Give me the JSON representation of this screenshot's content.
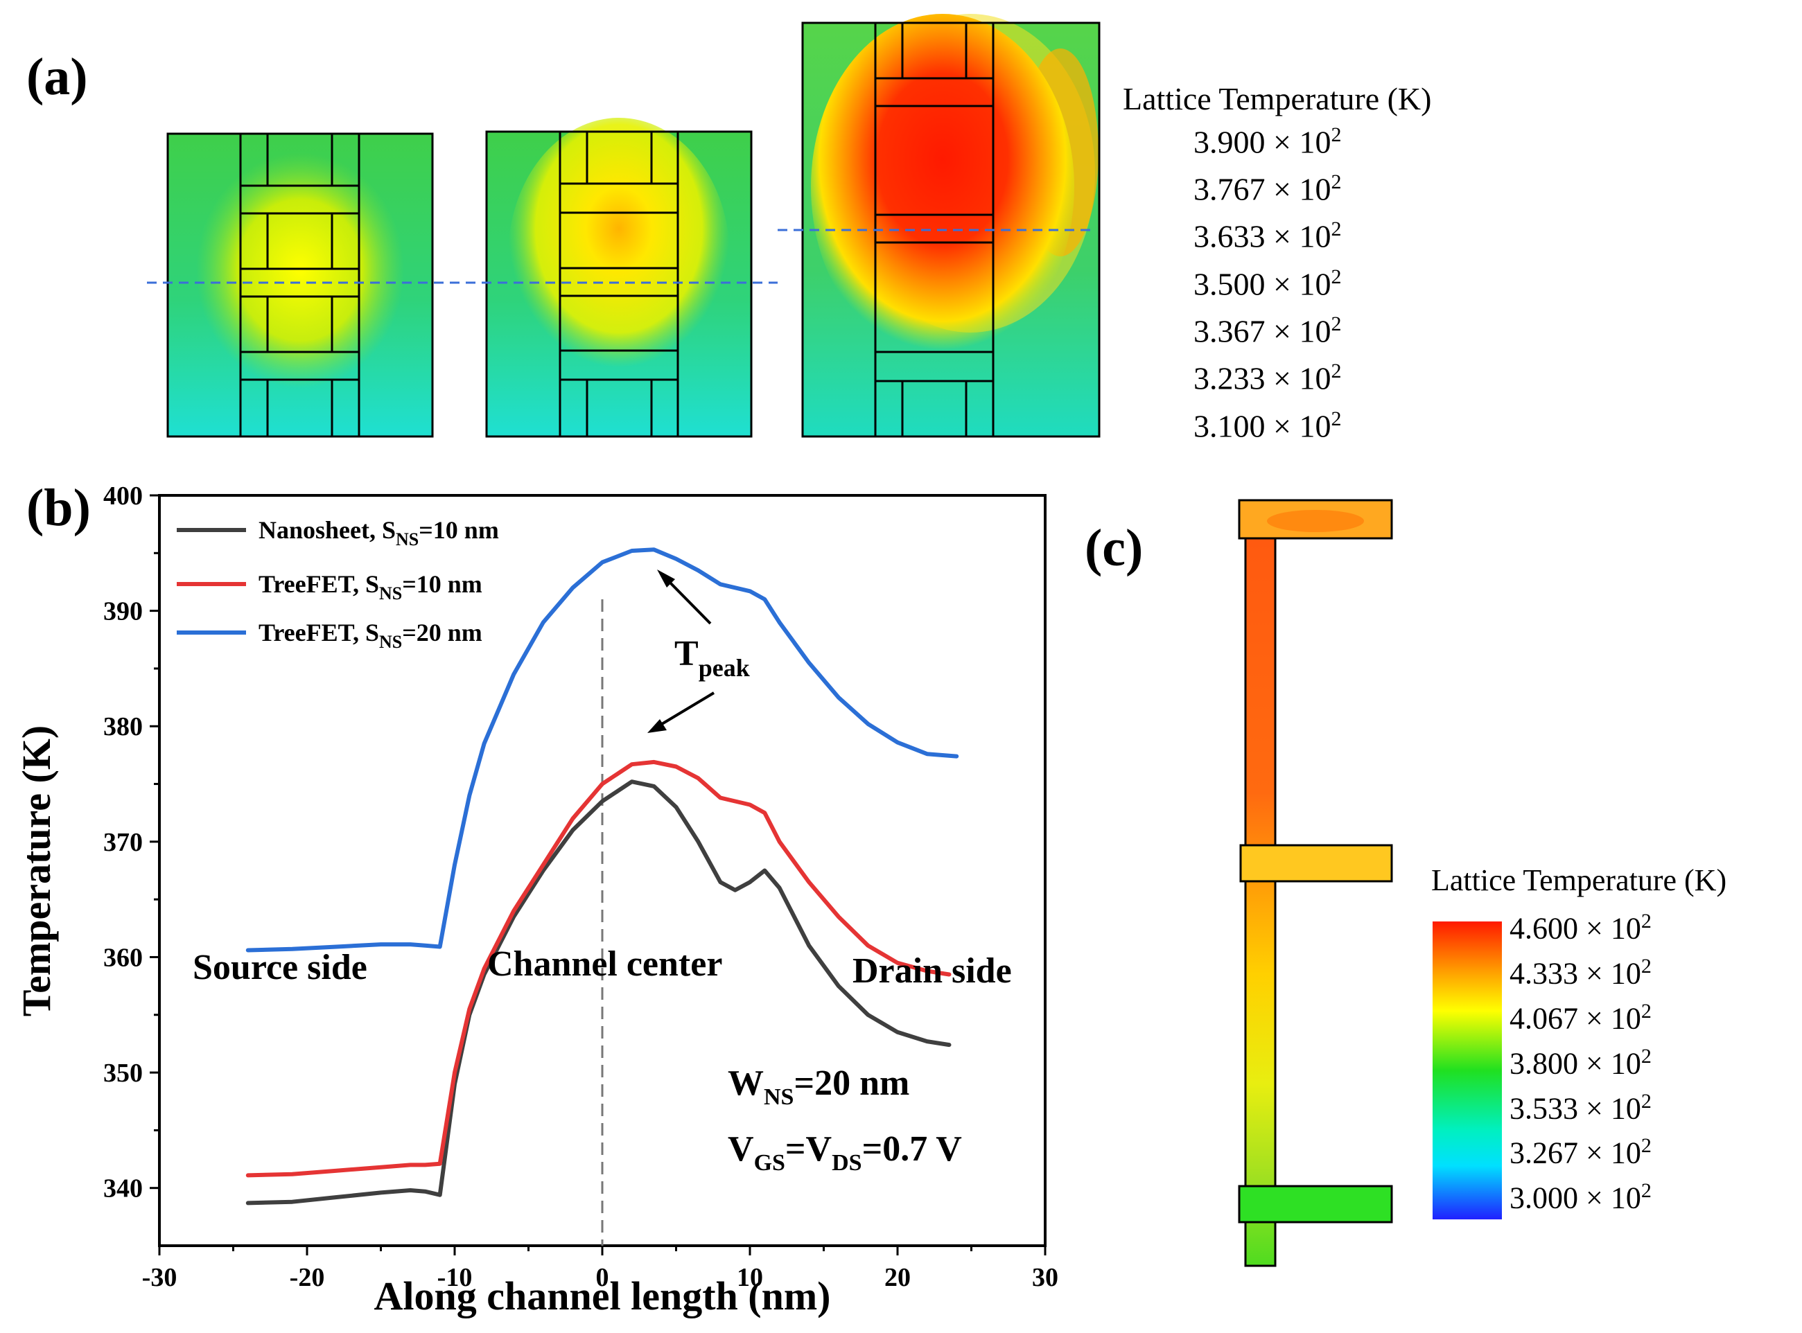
{
  "figure": {
    "panel_a_label": "(a)",
    "panel_b_label": "(b)",
    "panel_c_label": "(c)"
  },
  "colorbar_a": {
    "title": "Lattice Temperature (K)",
    "ticks": [
      "3.900",
      "3.767",
      "3.633",
      "3.500",
      "3.367",
      "3.233",
      "3.100"
    ],
    "multiplier": "× 10",
    "exponent": "2"
  },
  "colorbar_c": {
    "title": "Lattice Temperature (K)",
    "ticks": [
      "4.600",
      "4.333",
      "4.067",
      "3.800",
      "3.533",
      "3.267",
      "3.000"
    ],
    "multiplier": "× 10",
    "exponent": "2"
  },
  "chart_data": {
    "type": "line",
    "xlabel": "Along channel length (nm)",
    "ylabel": "Temperature (K)",
    "xlim": [
      -30,
      30
    ],
    "ylim": [
      335,
      400
    ],
    "xticks": [
      "-30",
      "-20",
      "-10",
      "0",
      "10",
      "20",
      "30"
    ],
    "yticks": [
      "340",
      "350",
      "360",
      "370",
      "380",
      "390",
      "400"
    ],
    "series": [
      {
        "name": "Nanosheet, S",
        "sub": "NS",
        "suffix": "=10 nm",
        "color": "#3f3f3f",
        "x": [
          -24,
          -21,
          -18,
          -15,
          -13,
          -12,
          -11,
          -10,
          -9,
          -8,
          -6,
          -4,
          -2,
          0,
          2,
          3.5,
          5,
          6.5,
          8,
          9,
          10,
          11,
          12,
          14,
          16,
          18,
          20,
          22,
          23.5
        ],
        "y": [
          338.7,
          338.8,
          339.2,
          339.6,
          339.8,
          339.7,
          339.4,
          349,
          355,
          358.5,
          363.5,
          367.5,
          371,
          373.5,
          375.2,
          374.8,
          373,
          370,
          366.5,
          365.8,
          366.5,
          367.5,
          366,
          361,
          357.5,
          355,
          353.5,
          352.7,
          352.4
        ]
      },
      {
        "name": "TreeFET, S",
        "sub": "NS",
        "suffix": "=10 nm",
        "color": "#e53434",
        "x": [
          -24,
          -21,
          -18,
          -15,
          -13,
          -12,
          -11,
          -10,
          -9,
          -8,
          -6,
          -4,
          -2,
          0,
          2,
          3.5,
          5,
          6.5,
          8,
          9,
          10,
          11,
          12,
          14,
          16,
          18,
          20,
          22,
          23.5
        ],
        "y": [
          341.1,
          341.2,
          341.5,
          341.8,
          342,
          342,
          342.1,
          350,
          355.5,
          359,
          364,
          368,
          372,
          375,
          376.7,
          376.9,
          376.5,
          375.5,
          373.8,
          373.5,
          373.2,
          372.5,
          370,
          366.5,
          363.5,
          361,
          359.5,
          358.8,
          358.5
        ]
      },
      {
        "name": "TreeFET, S",
        "sub": "NS",
        "suffix": "=20 nm",
        "color": "#2b6fd6",
        "x": [
          -24,
          -21,
          -18,
          -15,
          -13,
          -12,
          -11,
          -10,
          -9,
          -8,
          -6,
          -4,
          -2,
          0,
          2,
          3.5,
          5,
          6.5,
          8,
          9,
          10,
          11,
          12,
          14,
          16,
          18,
          20,
          22,
          24
        ],
        "y": [
          360.6,
          360.7,
          360.9,
          361.1,
          361.1,
          361,
          360.9,
          368,
          374,
          378.5,
          384.5,
          389,
          392,
          394.2,
          395.2,
          395.3,
          394.5,
          393.5,
          392.3,
          392,
          391.7,
          391,
          389,
          385.5,
          382.5,
          380.2,
          378.6,
          377.6,
          377.4
        ]
      }
    ],
    "annotations": {
      "peak_label": "T",
      "peak_sub": "peak",
      "source": "Source side",
      "center": "Channel center",
      "drain": "Drain side",
      "w_text": "W",
      "w_sub": "NS",
      "w_suffix": "=20 nm",
      "v_text1": "V",
      "v_sub1": "GS",
      "v_text2": "=V",
      "v_sub2": "DS",
      "v_suffix": "=0.7 V"
    }
  }
}
